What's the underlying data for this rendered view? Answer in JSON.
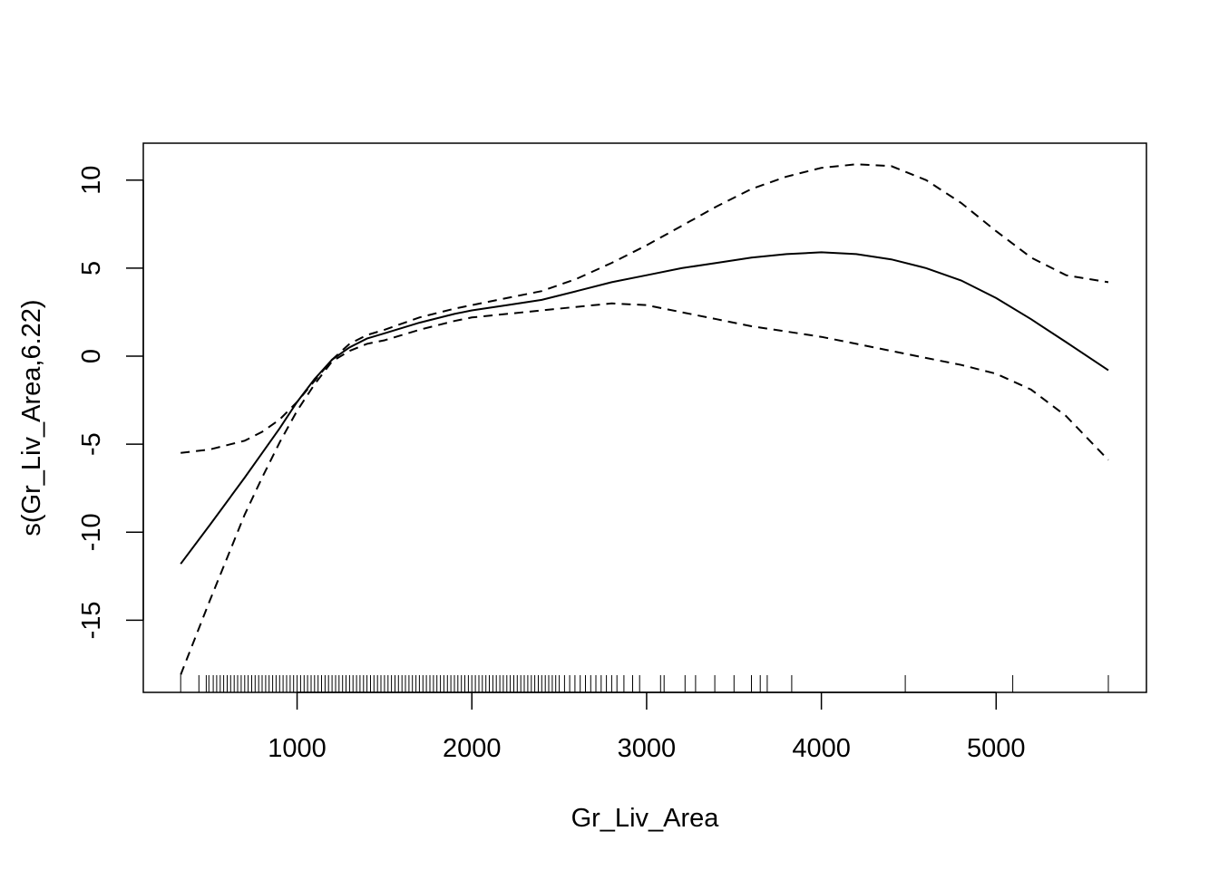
{
  "chart_data": {
    "type": "line",
    "xlabel": "Gr_Liv_Area",
    "ylabel": "s(Gr_Liv_Area,6.22)",
    "xlim": [
      120,
      5860
    ],
    "ylim": [
      -19.1,
      12.1
    ],
    "x_ticks": [
      1000,
      2000,
      3000,
      4000,
      5000
    ],
    "x_tick_labels": [
      "1000",
      "2000",
      "3000",
      "4000",
      "5000"
    ],
    "y_ticks": [
      -15,
      -10,
      -5,
      0,
      5,
      10
    ],
    "y_tick_labels": [
      "-15",
      "-10",
      "-5",
      "0",
      "5",
      "10"
    ],
    "grid": false,
    "series": [
      {
        "style": "solid",
        "x": [
          334,
          500,
          700,
          900,
          1000,
          1100,
          1200,
          1300,
          1400,
          1500,
          1700,
          1900,
          2000,
          2200,
          2400,
          2600,
          2800,
          3000,
          3200,
          3400,
          3600,
          3800,
          4000,
          4200,
          4400,
          4600,
          4800,
          5000,
          5200,
          5400,
          5642
        ],
        "y": [
          -11.8,
          -9.6,
          -6.9,
          -4.1,
          -2.6,
          -1.3,
          -0.2,
          0.5,
          1.0,
          1.3,
          1.9,
          2.4,
          2.6,
          2.9,
          3.2,
          3.7,
          4.2,
          4.6,
          5.0,
          5.3,
          5.6,
          5.8,
          5.9,
          5.8,
          5.5,
          5.0,
          4.3,
          3.3,
          2.1,
          0.8,
          -0.8
        ]
      },
      {
        "style": "dashed",
        "x": [
          334,
          500,
          700,
          800,
          900,
          1000,
          1100,
          1200,
          1300,
          1400,
          1500,
          1700,
          1900,
          2000,
          2200,
          2400,
          2600,
          2800,
          3000,
          3200,
          3400,
          3600,
          3800,
          4000,
          4200,
          4400,
          4600,
          4800,
          5000,
          5200,
          5400,
          5642
        ],
        "y": [
          -5.5,
          -5.3,
          -4.8,
          -4.3,
          -3.6,
          -2.6,
          -1.4,
          -0.2,
          0.7,
          1.2,
          1.5,
          2.2,
          2.7,
          2.9,
          3.3,
          3.7,
          4.4,
          5.3,
          6.3,
          7.4,
          8.5,
          9.5,
          10.2,
          10.7,
          10.9,
          10.8,
          10.0,
          8.7,
          7.1,
          5.6,
          4.6,
          4.2
        ]
      },
      {
        "style": "dashed",
        "x": [
          334,
          500,
          700,
          800,
          900,
          1000,
          1100,
          1200,
          1300,
          1400,
          1500,
          1700,
          1900,
          2000,
          2200,
          2400,
          2600,
          2800,
          3000,
          3200,
          3400,
          3600,
          3800,
          4000,
          4200,
          4400,
          4600,
          4800,
          5000,
          5200,
          5400,
          5642
        ],
        "y": [
          -18.1,
          -13.9,
          -9.0,
          -6.9,
          -4.9,
          -3.1,
          -1.6,
          -0.3,
          0.3,
          0.7,
          0.9,
          1.5,
          2.0,
          2.2,
          2.4,
          2.6,
          2.8,
          3.0,
          2.9,
          2.5,
          2.1,
          1.7,
          1.4,
          1.1,
          0.7,
          0.3,
          -0.1,
          -0.5,
          -1.0,
          -1.9,
          -3.4,
          -5.9
        ]
      }
    ],
    "rug": [
      334,
      438,
      480,
      495,
      520,
      540,
      560,
      580,
      600,
      620,
      640,
      660,
      680,
      700,
      720,
      740,
      760,
      780,
      800,
      820,
      840,
      860,
      880,
      900,
      920,
      940,
      960,
      980,
      1000,
      1020,
      1040,
      1060,
      1080,
      1100,
      1120,
      1140,
      1160,
      1180,
      1200,
      1220,
      1240,
      1260,
      1280,
      1300,
      1320,
      1340,
      1360,
      1380,
      1400,
      1420,
      1440,
      1460,
      1480,
      1500,
      1520,
      1540,
      1560,
      1580,
      1600,
      1620,
      1640,
      1660,
      1680,
      1700,
      1720,
      1740,
      1760,
      1780,
      1800,
      1820,
      1840,
      1860,
      1880,
      1900,
      1920,
      1940,
      1960,
      1980,
      2000,
      2020,
      2040,
      2060,
      2080,
      2100,
      2120,
      2140,
      2160,
      2180,
      2200,
      2220,
      2240,
      2260,
      2280,
      2300,
      2320,
      2340,
      2360,
      2380,
      2400,
      2420,
      2440,
      2460,
      2480,
      2500,
      2530,
      2560,
      2590,
      2620,
      2650,
      2680,
      2710,
      2740,
      2770,
      2800,
      2830,
      2870,
      2920,
      2960,
      3080,
      3100,
      3220,
      3280,
      3390,
      3500,
      3600,
      3650,
      3690,
      3830,
      4480,
      5095,
      5642
    ]
  }
}
